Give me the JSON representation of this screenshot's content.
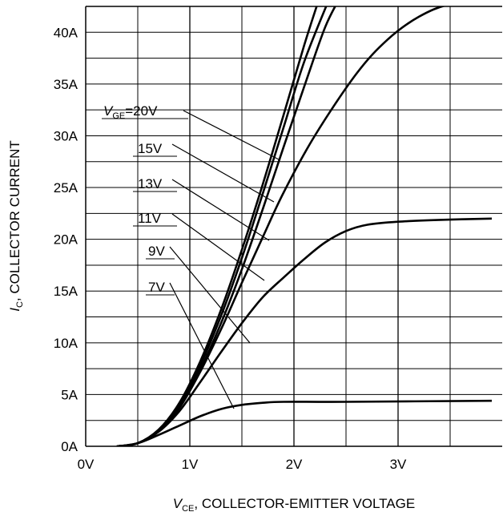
{
  "chart_data": {
    "type": "line",
    "title": "",
    "xlabel": {
      "var": "V",
      "sub": "CE",
      "text": ", COLLECTOR-EMITTER VOLTAGE"
    },
    "ylabel": {
      "var": "I",
      "sub": "C",
      "text": ", COLLECTOR CURRENT"
    },
    "xlim": [
      0,
      4
    ],
    "ylim": [
      0,
      42.5
    ],
    "x_ticks": [
      0,
      1,
      2,
      3
    ],
    "x_tick_labels": [
      "0V",
      "1V",
      "2V",
      "3V"
    ],
    "y_ticks": [
      0,
      5,
      10,
      15,
      20,
      25,
      30,
      35,
      40
    ],
    "y_tick_labels": [
      "0A",
      "5A",
      "10A",
      "15A",
      "20A",
      "25A",
      "30A",
      "35A",
      "40A"
    ],
    "grid": true,
    "x_minor_per_major": 1,
    "y_minor_per_major": 2,
    "series": [
      {
        "name": "V_GE=20V",
        "points": [
          [
            0.3,
            0
          ],
          [
            0.5,
            0.3
          ],
          [
            0.7,
            1.6
          ],
          [
            0.9,
            4.2
          ],
          [
            1.1,
            8.2
          ],
          [
            1.3,
            13.2
          ],
          [
            1.5,
            19.0
          ],
          [
            1.7,
            25.3
          ],
          [
            1.9,
            32.0
          ],
          [
            2.1,
            38.8
          ],
          [
            2.25,
            43.5
          ]
        ]
      },
      {
        "name": "15V",
        "points": [
          [
            0.3,
            0
          ],
          [
            0.5,
            0.3
          ],
          [
            0.7,
            1.6
          ],
          [
            0.9,
            4.0
          ],
          [
            1.1,
            7.8
          ],
          [
            1.3,
            12.6
          ],
          [
            1.5,
            18.2
          ],
          [
            1.7,
            24.4
          ],
          [
            1.9,
            30.8
          ],
          [
            2.1,
            37.2
          ],
          [
            2.35,
            43.5
          ]
        ]
      },
      {
        "name": "13V",
        "points": [
          [
            0.3,
            0
          ],
          [
            0.5,
            0.3
          ],
          [
            0.7,
            1.5
          ],
          [
            0.9,
            3.8
          ],
          [
            1.1,
            7.4
          ],
          [
            1.3,
            11.9
          ],
          [
            1.5,
            17.1
          ],
          [
            1.7,
            22.9
          ],
          [
            1.9,
            28.9
          ],
          [
            2.1,
            34.8
          ],
          [
            2.3,
            40.5
          ],
          [
            2.45,
            43.5
          ]
        ]
      },
      {
        "name": "11V",
        "points": [
          [
            0.3,
            0
          ],
          [
            0.5,
            0.3
          ],
          [
            0.7,
            1.5
          ],
          [
            0.9,
            3.7
          ],
          [
            1.1,
            7.2
          ],
          [
            1.3,
            11.3
          ],
          [
            1.5,
            15.8
          ],
          [
            1.7,
            20.2
          ],
          [
            1.9,
            24.5
          ],
          [
            2.2,
            30.0
          ],
          [
            2.6,
            36.0
          ],
          [
            2.9,
            39.3
          ],
          [
            3.2,
            41.5
          ],
          [
            3.5,
            42.7
          ],
          [
            3.9,
            43.0
          ]
        ]
      },
      {
        "name": "9V",
        "points": [
          [
            0.3,
            0
          ],
          [
            0.5,
            0.3
          ],
          [
            0.7,
            1.4
          ],
          [
            0.9,
            3.4
          ],
          [
            1.1,
            6.2
          ],
          [
            1.3,
            9.1
          ],
          [
            1.5,
            11.9
          ],
          [
            1.7,
            14.4
          ],
          [
            1.9,
            16.3
          ],
          [
            2.1,
            18.1
          ],
          [
            2.3,
            19.7
          ],
          [
            2.5,
            20.8
          ],
          [
            2.7,
            21.4
          ],
          [
            3.0,
            21.7
          ],
          [
            3.5,
            21.9
          ],
          [
            3.9,
            22.0
          ]
        ]
      },
      {
        "name": "7V",
        "points": [
          [
            0.3,
            0
          ],
          [
            0.5,
            0.3
          ],
          [
            0.7,
            1.1
          ],
          [
            0.9,
            2.0
          ],
          [
            1.1,
            2.9
          ],
          [
            1.3,
            3.6
          ],
          [
            1.5,
            4.0
          ],
          [
            1.7,
            4.2
          ],
          [
            1.9,
            4.3
          ],
          [
            2.5,
            4.3
          ],
          [
            3.9,
            4.4
          ]
        ]
      }
    ],
    "annotations": [
      {
        "parts": [
          {
            "t": "V",
            "it": true
          },
          {
            "t": "GE",
            "sub": true
          },
          {
            "t": "=20V"
          }
        ],
        "ref": 0
      },
      {
        "parts": [
          {
            "t": "15V"
          }
        ],
        "ref": 1
      },
      {
        "parts": [
          {
            "t": "13V"
          }
        ],
        "ref": 2
      },
      {
        "parts": [
          {
            "t": "11V"
          }
        ],
        "ref": 3
      },
      {
        "parts": [
          {
            "t": "9V"
          }
        ],
        "ref": 4
      },
      {
        "parts": [
          {
            "t": "7V"
          }
        ],
        "ref": 5
      }
    ]
  }
}
